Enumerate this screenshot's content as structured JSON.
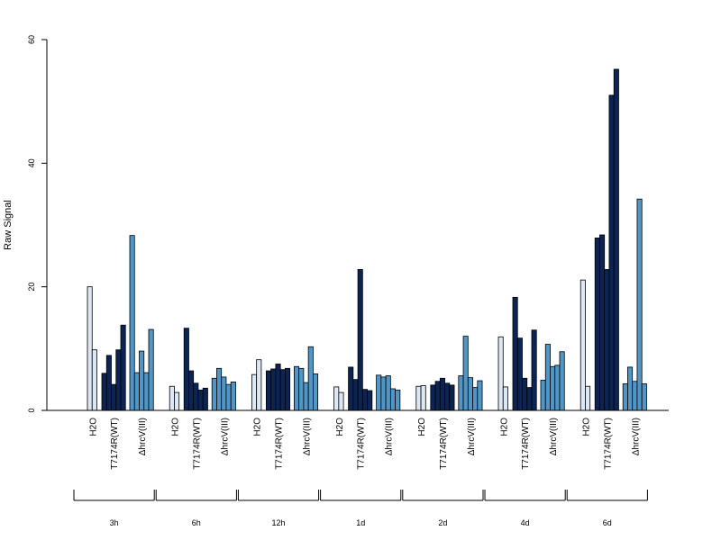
{
  "chart_data": {
    "type": "bar",
    "ylabel": "Raw Signal",
    "ylim": [
      0,
      60
    ],
    "yticks": [
      0,
      20,
      40,
      60
    ],
    "colors": {
      "H2O": "#dde8f4",
      "T7174R(WT)": "#0b2454",
      "ΔhrcV(III)": "#5096c7"
    },
    "timepoints": [
      {
        "label": "3h",
        "groups": [
          {
            "name": "H2O",
            "values": [
              20.0,
              9.8
            ]
          },
          {
            "name": "T7174R(WT)",
            "values": [
              6.0,
              8.9,
              4.2,
              9.8,
              13.8
            ]
          },
          {
            "name": "ΔhrcV(III)",
            "values": [
              28.3,
              6.1,
              9.6,
              6.1,
              13.1
            ]
          }
        ]
      },
      {
        "label": "6h",
        "groups": [
          {
            "name": "H2O",
            "values": [
              3.9,
              2.9
            ]
          },
          {
            "name": "T7174R(WT)",
            "values": [
              13.3,
              6.4,
              4.4,
              3.3,
              3.6
            ]
          },
          {
            "name": "ΔhrcV(III)",
            "values": [
              5.2,
              6.8,
              5.4,
              4.2,
              4.6
            ]
          }
        ]
      },
      {
        "label": "12h",
        "groups": [
          {
            "name": "H2O",
            "values": [
              5.8,
              8.2
            ]
          },
          {
            "name": "T7174R(WT)",
            "values": [
              6.4,
              6.7,
              7.5,
              6.6,
              6.8
            ]
          },
          {
            "name": "ΔhrcV(III)",
            "values": [
              7.1,
              6.8,
              4.5,
              10.3,
              5.9
            ]
          }
        ]
      },
      {
        "label": "1d",
        "groups": [
          {
            "name": "H2O",
            "values": [
              3.8,
              2.9
            ]
          },
          {
            "name": "T7174R(WT)",
            "values": [
              7.0,
              5.0,
              22.8,
              3.4,
              3.2
            ]
          },
          {
            "name": "ΔhrcV(III)",
            "values": [
              5.7,
              5.4,
              5.6,
              3.5,
              3.3
            ]
          }
        ]
      },
      {
        "label": "2d",
        "groups": [
          {
            "name": "H2O",
            "values": [
              3.9,
              4.0
            ]
          },
          {
            "name": "T7174R(WT)",
            "values": [
              4.1,
              4.7,
              5.2,
              4.4,
              4.1
            ]
          },
          {
            "name": "ΔhrcV(III)",
            "values": [
              5.6,
              12.0,
              5.3,
              3.7,
              4.8
            ]
          }
        ]
      },
      {
        "label": "4d",
        "groups": [
          {
            "name": "H2O",
            "values": [
              11.9,
              3.8
            ]
          },
          {
            "name": "T7174R(WT)",
            "values": [
              18.3,
              11.7,
              5.2,
              3.7,
              13.0
            ]
          },
          {
            "name": "ΔhrcV(III)",
            "values": [
              4.9,
              10.7,
              7.1,
              7.3,
              9.5
            ]
          }
        ]
      },
      {
        "label": "6d",
        "groups": [
          {
            "name": "H2O",
            "values": [
              21.1,
              3.9
            ]
          },
          {
            "name": "T7174R(WT)",
            "values": [
              27.9,
              28.4,
              22.8,
              51.0,
              55.2
            ]
          },
          {
            "name": "ΔhrcV(III)",
            "values": [
              4.3,
              7.0,
              4.7,
              34.2,
              4.3
            ]
          }
        ]
      }
    ]
  }
}
